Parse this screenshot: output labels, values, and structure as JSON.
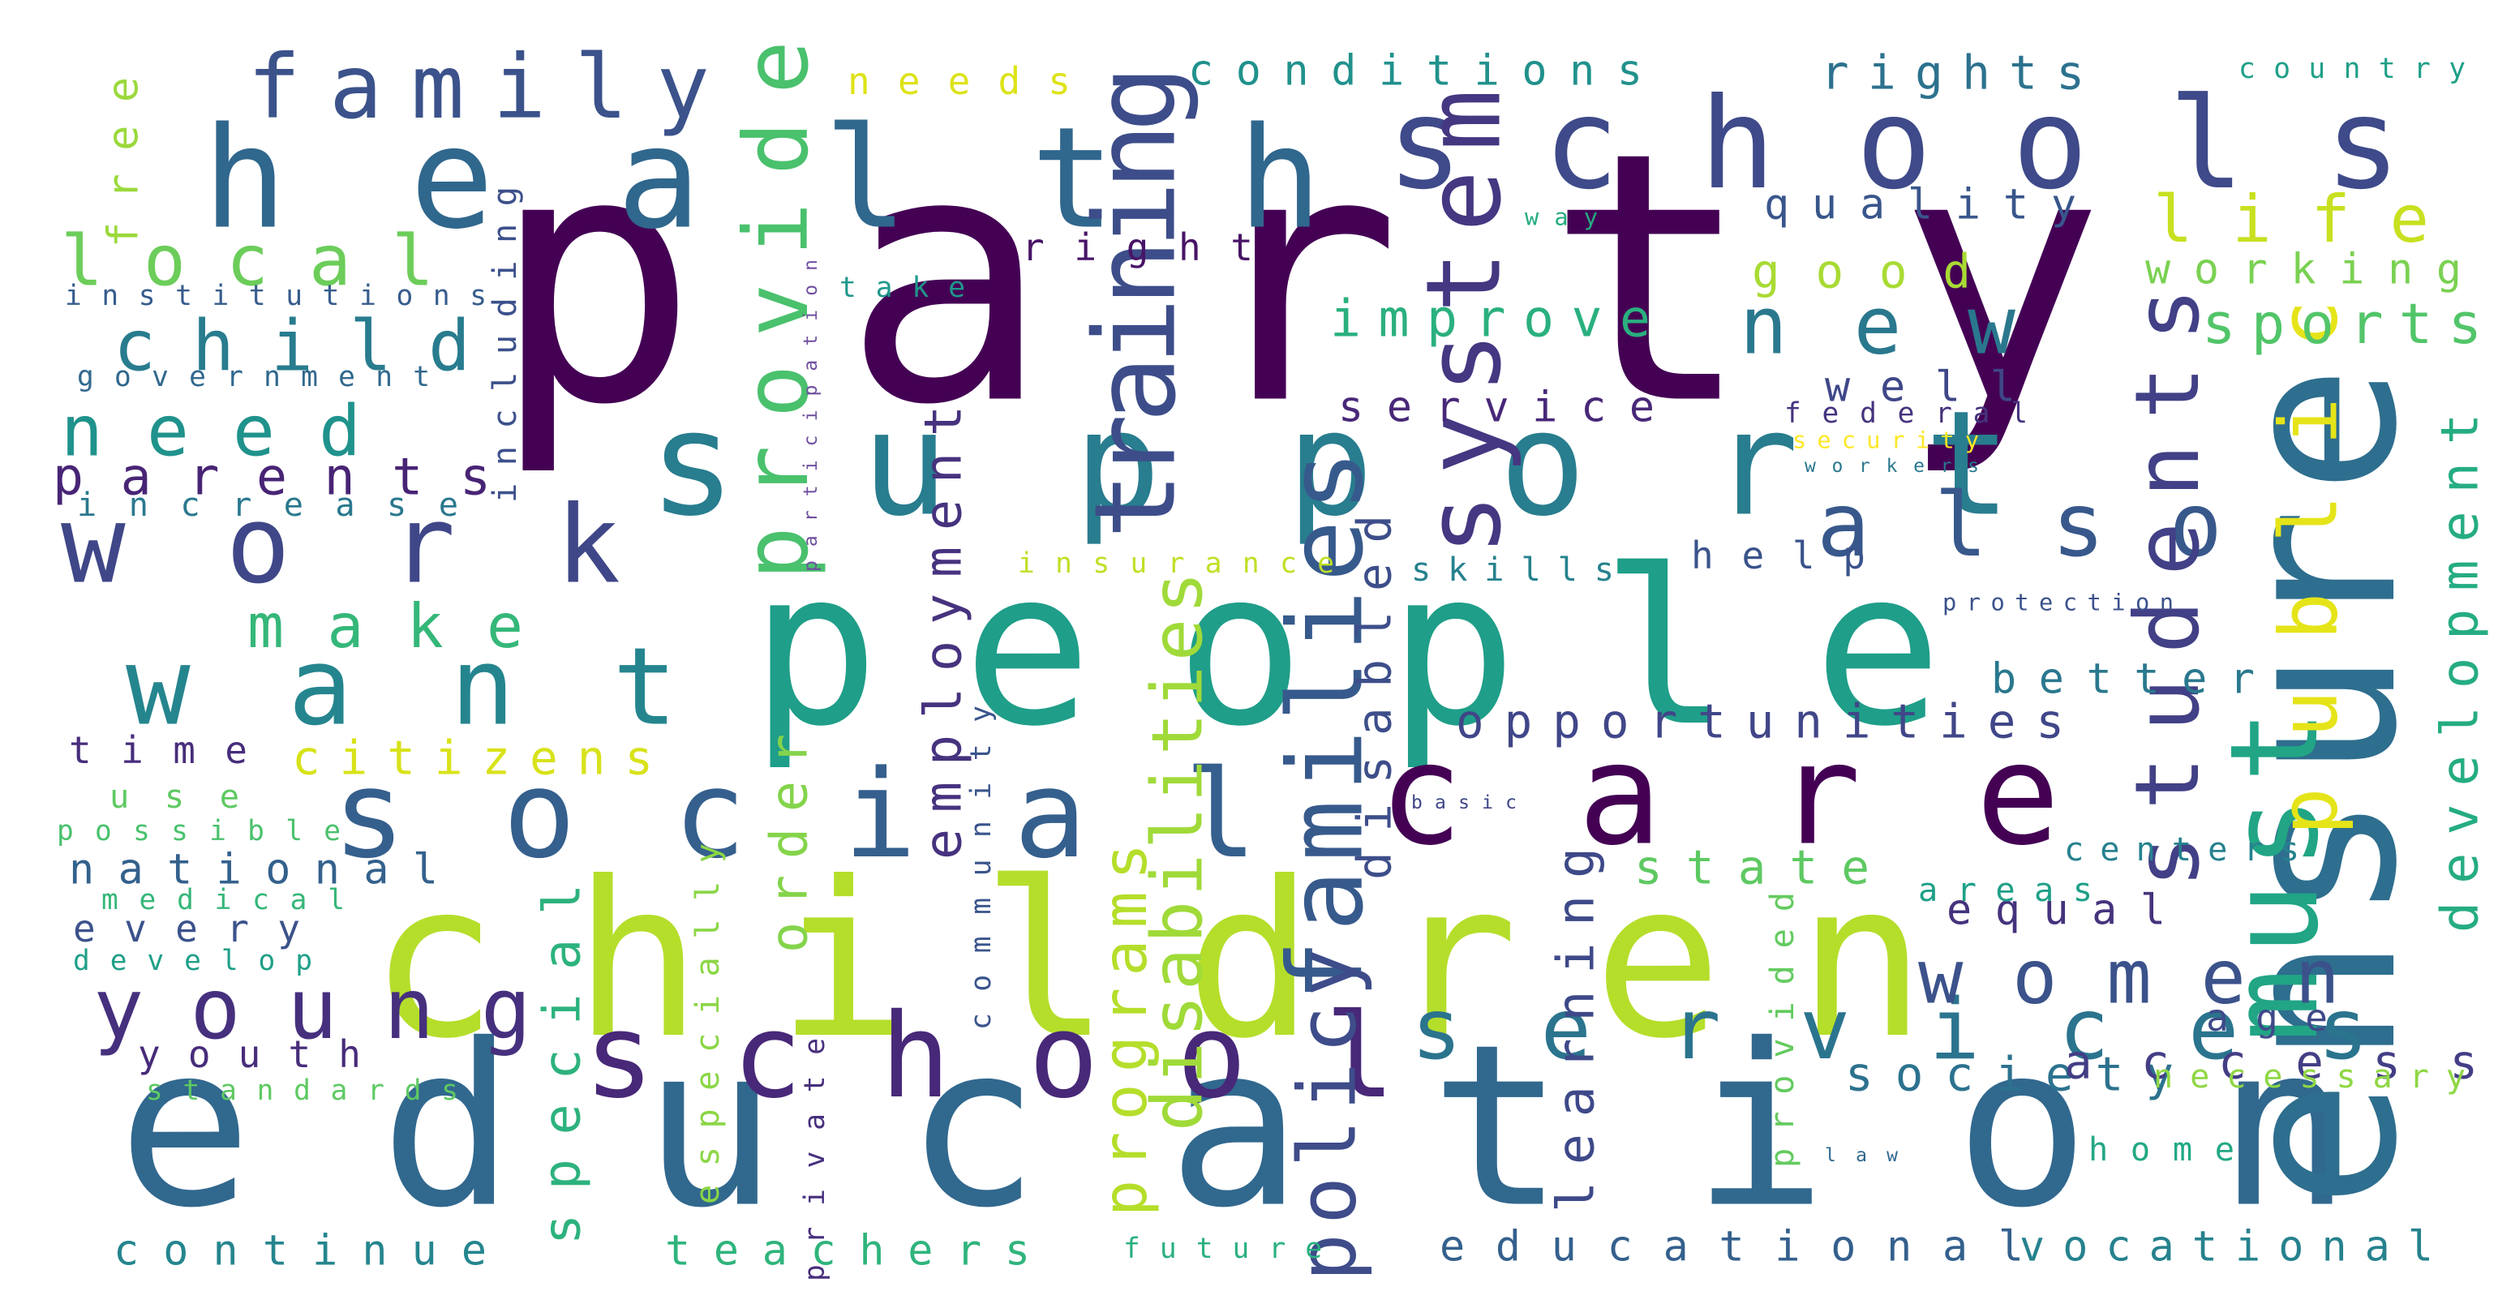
{
  "words": [
    {
      "text": "party",
      "color": "#440154"
    },
    {
      "text": "education",
      "color": "#31688e"
    },
    {
      "text": "people",
      "color": "#1f9e89"
    },
    {
      "text": "children",
      "color": "#b5de2b"
    },
    {
      "text": "health",
      "color": "#30678d"
    },
    {
      "text": "schools",
      "color": "#3e4a89"
    },
    {
      "text": "support",
      "color": "#287d8e"
    },
    {
      "text": "care",
      "color": "#440154"
    },
    {
      "text": "social",
      "color": "#355f8d"
    },
    {
      "text": "school",
      "color": "#482878"
    },
    {
      "text": "want",
      "color": "#25858e"
    },
    {
      "text": "work",
      "color": "#3f4788"
    },
    {
      "text": "ensure",
      "color": "#2e6e8e"
    },
    {
      "text": "must",
      "color": "#21a585"
    },
    {
      "text": "also",
      "color": "#38588c"
    },
    {
      "text": "training",
      "color": "#3d4d8a"
    },
    {
      "text": "system",
      "color": "#453781"
    },
    {
      "text": "services",
      "color": "#2b748e"
    },
    {
      "text": "family",
      "color": "#3b528b"
    },
    {
      "text": "families",
      "color": "#375a8c"
    },
    {
      "text": "students",
      "color": "#424086"
    },
    {
      "text": "young",
      "color": "#46307e"
    },
    {
      "text": "public",
      "color": "#e5e419"
    },
    {
      "text": "provide",
      "color": "#4ac16d"
    },
    {
      "text": "new",
      "color": "#2a788e"
    },
    {
      "text": "women",
      "color": "#3b528b"
    },
    {
      "text": "local",
      "color": "#6ccd5a"
    },
    {
      "text": "child",
      "color": "#287c8e"
    },
    {
      "text": "need",
      "color": "#20928c"
    },
    {
      "text": "life",
      "color": "#c8e020"
    },
    {
      "text": "make",
      "color": "#35b779"
    },
    {
      "text": "parents",
      "color": "#482475"
    },
    {
      "text": "employment",
      "color": "#46327e"
    },
    {
      "text": "policy",
      "color": "#3e4c8a"
    },
    {
      "text": "sports",
      "color": "#52c569"
    },
    {
      "text": "opportunities",
      "color": "#404688"
    },
    {
      "text": "improve",
      "color": "#2ab07f"
    },
    {
      "text": "order",
      "color": "#84d44b"
    },
    {
      "text": "special",
      "color": "#2db27d"
    },
    {
      "text": "programs",
      "color": "#b5de2b"
    },
    {
      "text": "disabilities",
      "color": "#a0da39"
    },
    {
      "text": "learning",
      "color": "#3e4989"
    },
    {
      "text": "development",
      "color": "#25ac82"
    },
    {
      "text": "rights",
      "color": "#2c728e"
    },
    {
      "text": "conditions",
      "color": "#21918c"
    },
    {
      "text": "working",
      "color": "#7ad151"
    },
    {
      "text": "quality",
      "color": "#39568c"
    },
    {
      "text": "good",
      "color": "#a8db34"
    },
    {
      "text": "service",
      "color": "#482878"
    },
    {
      "text": "well",
      "color": "#3f4788"
    },
    {
      "text": "citizens",
      "color": "#d8e219"
    },
    {
      "text": "state",
      "color": "#5ec962"
    },
    {
      "text": "society",
      "color": "#2c728e"
    },
    {
      "text": "equal",
      "color": "#45337d"
    },
    {
      "text": "access",
      "color": "#433e85"
    },
    {
      "text": "educational",
      "color": "#34608d"
    },
    {
      "text": "vocational",
      "color": "#26828e"
    },
    {
      "text": "continue",
      "color": "#25858e"
    },
    {
      "text": "teachers",
      "color": "#2fb47c"
    },
    {
      "text": "time",
      "color": "#472d7b"
    },
    {
      "text": "national",
      "color": "#34618d"
    },
    {
      "text": "every",
      "color": "#3b528b"
    },
    {
      "text": "use",
      "color": "#5ec962"
    },
    {
      "text": "youth",
      "color": "#472c7a"
    },
    {
      "text": "better",
      "color": "#2a788e"
    },
    {
      "text": "help",
      "color": "#3a538b"
    },
    {
      "text": "right",
      "color": "#481467"
    },
    {
      "text": "needs",
      "color": "#dde318"
    },
    {
      "text": "age",
      "color": "#3e4a89"
    },
    {
      "text": "skills",
      "color": "#26828e"
    },
    {
      "text": "disabled",
      "color": "#3d4e8a"
    },
    {
      "text": "free",
      "color": "#9bd93c"
    },
    {
      "text": "increase",
      "color": "#2a788e"
    },
    {
      "text": "institutions",
      "color": "#365c8d"
    },
    {
      "text": "government",
      "color": "#31688e"
    },
    {
      "text": "including",
      "color": "#3c508b"
    },
    {
      "text": "participation",
      "color": "#6f4f9f"
    },
    {
      "text": "take",
      "color": "#1f988b"
    },
    {
      "text": "community",
      "color": "#3a548c"
    },
    {
      "text": "especially",
      "color": "#8bd646"
    },
    {
      "text": "private",
      "color": "#472f7d"
    },
    {
      "text": "future",
      "color": "#2ab07f"
    },
    {
      "text": "insurance",
      "color": "#c0df25"
    },
    {
      "text": "country",
      "color": "#1fa088"
    },
    {
      "text": "federal",
      "color": "#46337f"
    },
    {
      "text": "security",
      "color": "#fde725"
    },
    {
      "text": "workers",
      "color": "#2a788e"
    },
    {
      "text": "protection",
      "color": "#3b528b"
    },
    {
      "text": "basic",
      "color": "#3f4788"
    },
    {
      "text": "centers",
      "color": "#26828e"
    },
    {
      "text": "areas",
      "color": "#1fa088"
    },
    {
      "text": "provided",
      "color": "#63cb5f"
    },
    {
      "text": "necessary",
      "color": "#8fd744"
    },
    {
      "text": "home",
      "color": "#22a884"
    },
    {
      "text": "law",
      "color": "#31688e"
    },
    {
      "text": "possible",
      "color": "#4ac16d"
    },
    {
      "text": "medical",
      "color": "#35b779"
    },
    {
      "text": "develop",
      "color": "#1fa088"
    },
    {
      "text": "standards",
      "color": "#5ec962"
    },
    {
      "text": "way",
      "color": "#25ac82"
    }
  ]
}
